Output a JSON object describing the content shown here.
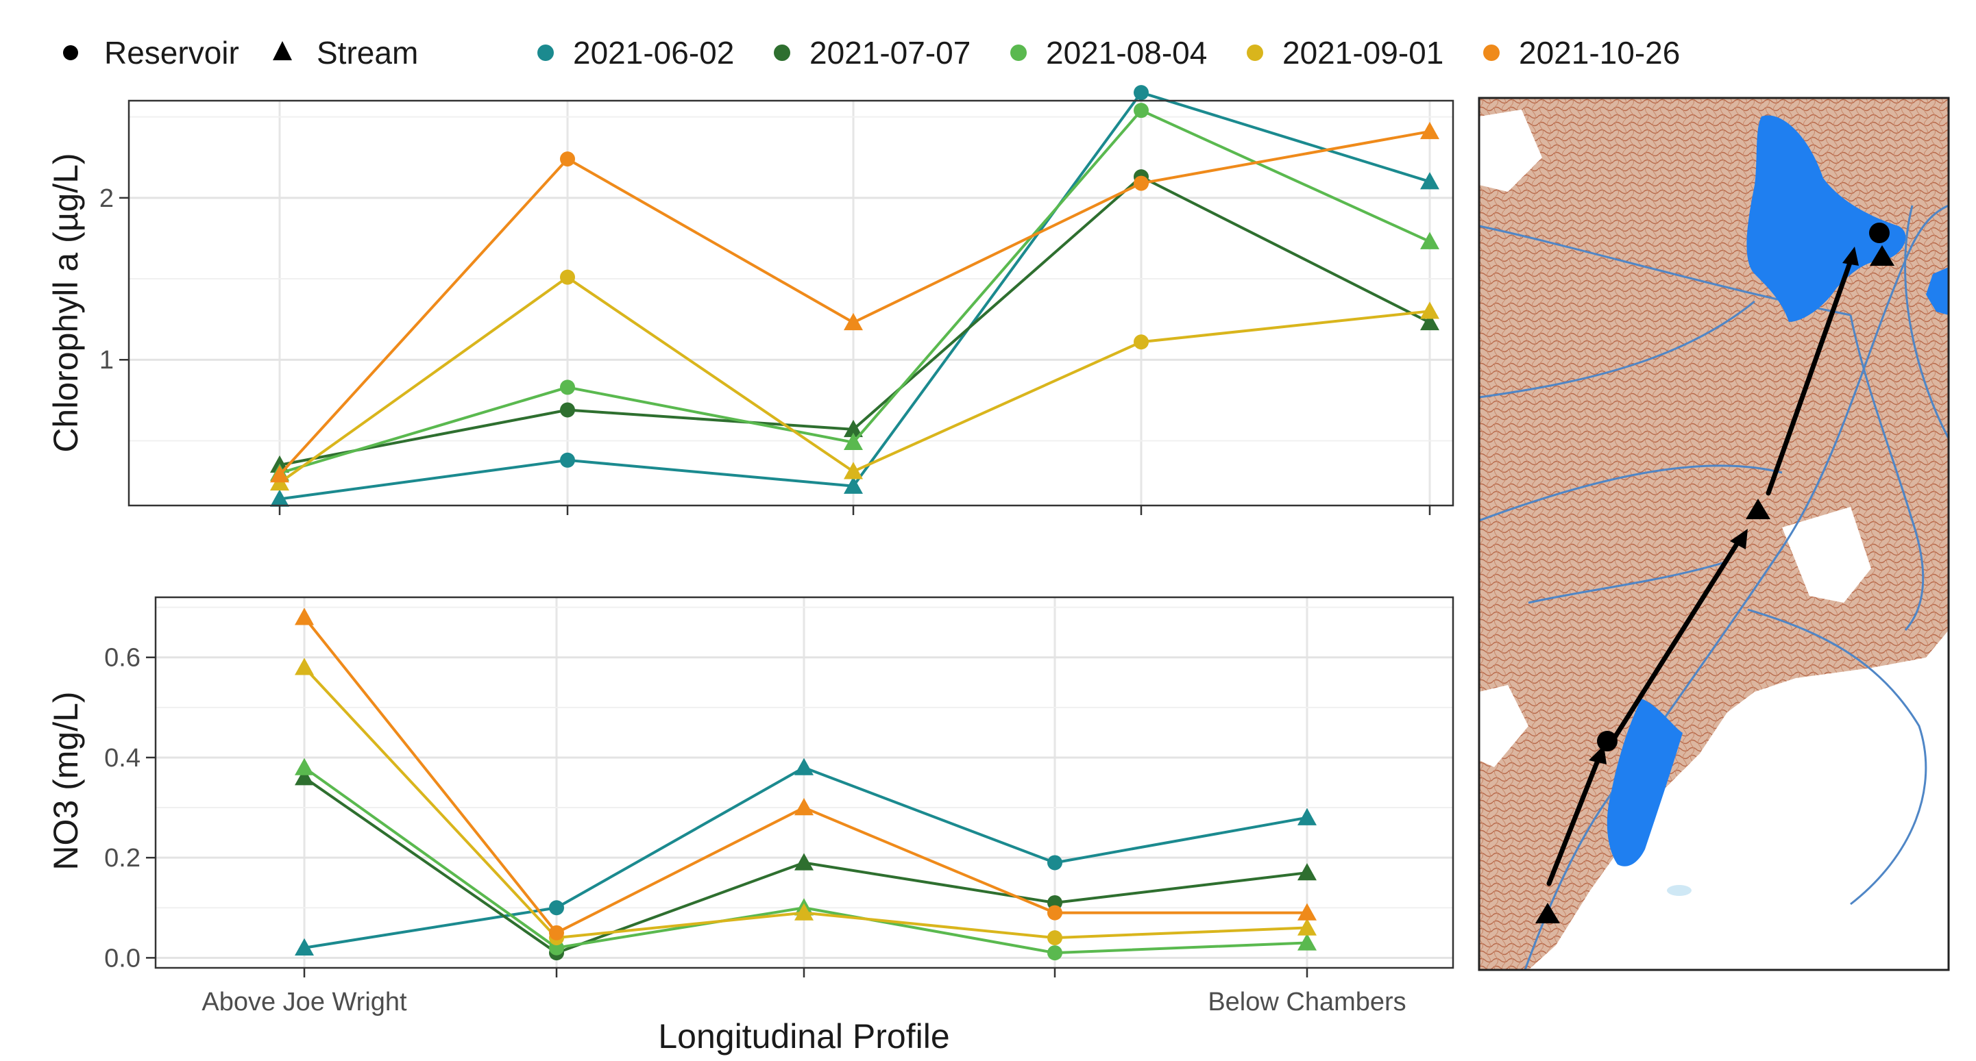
{
  "legend": {
    "shapes": [
      {
        "label": "Reservoir",
        "shape": "circle"
      },
      {
        "label": "Stream",
        "shape": "triangle"
      }
    ],
    "dates": [
      {
        "label": "2021-06-02",
        "color": "#1b8a8f"
      },
      {
        "label": "2021-07-07",
        "color": "#2e6f2f"
      },
      {
        "label": "2021-08-04",
        "color": "#5ab94f"
      },
      {
        "label": "2021-09-01",
        "color": "#d9b51c"
      },
      {
        "label": "2021-10-26",
        "color": "#ef8a1a"
      }
    ]
  },
  "chart_data": [
    {
      "type": "line",
      "ylabel": "Chlorophyll a (µg/L)",
      "xlabel": "",
      "ylim": [
        0.1,
        2.6
      ],
      "yticks": [
        1,
        2
      ],
      "x_tick_labels": [
        "",
        "",
        "",
        "",
        ""
      ],
      "x": [
        1,
        2,
        3,
        4,
        5
      ],
      "grid": true,
      "point_shapes": [
        "triangle",
        "circle",
        "triangle",
        "circle",
        "triangle"
      ],
      "series": [
        {
          "name": "2021-06-02",
          "color": "#1b8a8f",
          "values": [
            0.14,
            0.38,
            0.22,
            2.65,
            2.1
          ]
        },
        {
          "name": "2021-07-07",
          "color": "#2e6f2f",
          "values": [
            0.35,
            0.69,
            0.57,
            2.13,
            1.23
          ]
        },
        {
          "name": "2021-08-04",
          "color": "#5ab94f",
          "values": [
            0.3,
            0.83,
            0.49,
            2.54,
            1.73
          ]
        },
        {
          "name": "2021-09-01",
          "color": "#d9b51c",
          "values": [
            0.24,
            1.51,
            0.31,
            1.11,
            1.3
          ]
        },
        {
          "name": "2021-10-26",
          "color": "#ef8a1a",
          "values": [
            0.29,
            2.24,
            1.23,
            2.09,
            2.41
          ]
        }
      ]
    },
    {
      "type": "line",
      "ylabel": "NO3 (mg/L)",
      "xlabel": "Longitudinal Profile",
      "ylim": [
        -0.02,
        0.72
      ],
      "yticks": [
        0.0,
        0.2,
        0.4,
        0.6
      ],
      "ytick_labels": [
        "0.0",
        "0.2",
        "0.4",
        "0.6"
      ],
      "x_tick_labels": [
        "Above Joe Wright",
        "",
        "",
        "",
        "Below Chambers"
      ],
      "x": [
        1,
        2,
        3,
        4,
        5
      ],
      "grid": true,
      "point_shapes": [
        "triangle",
        "circle",
        "triangle",
        "circle",
        "triangle"
      ],
      "series": [
        {
          "name": "2021-06-02",
          "color": "#1b8a8f",
          "values": [
            0.02,
            0.1,
            0.38,
            0.19,
            0.28
          ]
        },
        {
          "name": "2021-07-07",
          "color": "#2e6f2f",
          "values": [
            0.36,
            0.01,
            0.19,
            0.11,
            0.17
          ]
        },
        {
          "name": "2021-08-04",
          "color": "#5ab94f",
          "values": [
            0.38,
            0.02,
            0.1,
            0.01,
            0.03
          ]
        },
        {
          "name": "2021-09-01",
          "color": "#d9b51c",
          "values": [
            0.58,
            0.04,
            0.09,
            0.04,
            0.06
          ]
        },
        {
          "name": "2021-10-26",
          "color": "#ef8a1a",
          "values": [
            0.68,
            0.05,
            0.3,
            0.09,
            0.09
          ]
        }
      ]
    }
  ],
  "map": {
    "colors": {
      "land": "#dbb39b",
      "contour": "#b4694a",
      "water": "#1f7ff0",
      "stream": "#4f86c6",
      "route": "#000000"
    },
    "sites": [
      "triangle",
      "circle",
      "triangle",
      "triangle",
      "circle"
    ]
  }
}
